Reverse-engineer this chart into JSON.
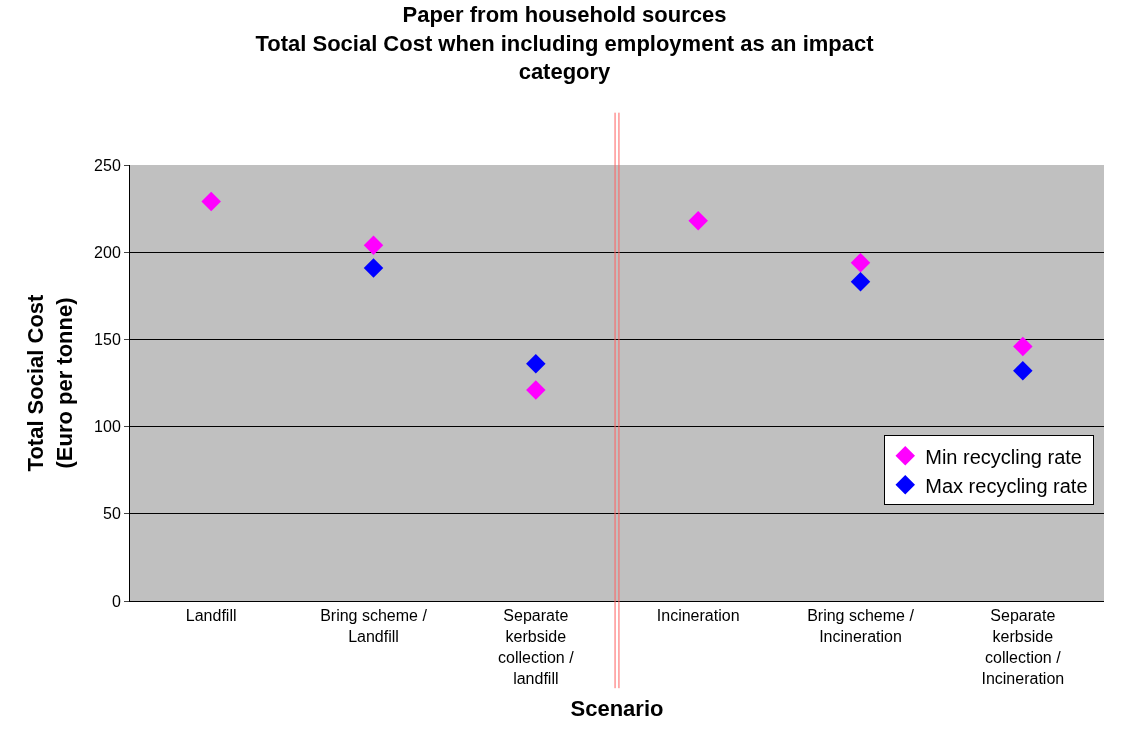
{
  "chart_data": {
    "type": "scatter",
    "title": "Paper from household sources\nTotal Social Cost when including employment as an impact category",
    "xlabel": "Scenario",
    "ylabel": "Total Social Cost (Euro per tonne)",
    "categories": [
      "Landfill",
      "Bring scheme / Landfill",
      "Separate kerbside collection / landfill",
      "Incineration",
      "Bring scheme / Incineration",
      "Separate kerbside collection / Incineration"
    ],
    "series": [
      {
        "name": "Min recycling rate",
        "color": "#ff00ff",
        "values": [
          229,
          204,
          121,
          218,
          194,
          146
        ]
      },
      {
        "name": "Max recycling rate",
        "color": "#0000ff",
        "values": [
          null,
          191,
          136,
          null,
          183,
          132
        ]
      }
    ],
    "ylim": [
      0,
      250
    ],
    "yticks": [
      0,
      50,
      100,
      150,
      200,
      250
    ],
    "grid": "y",
    "legend": "right",
    "marker": "diamond"
  }
}
